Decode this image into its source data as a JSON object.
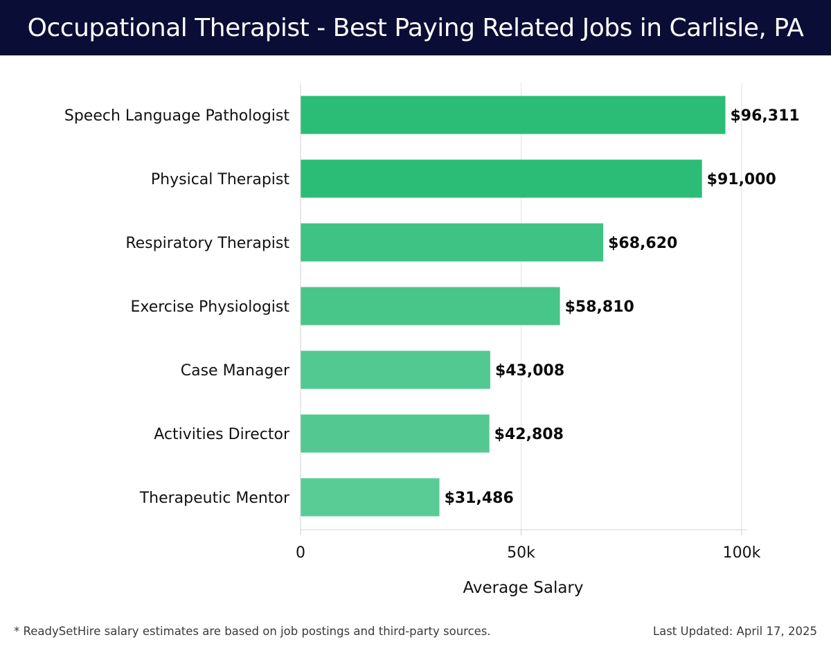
{
  "header": {
    "title": "Occupational Therapist - Best Paying Related Jobs in Carlisle, PA"
  },
  "footer": {
    "note": "* ReadySetHire salary estimates are based on job postings and third-party sources.",
    "updated": "Last Updated: April 17, 2025"
  },
  "chart_data": {
    "type": "bar",
    "orientation": "horizontal",
    "title": "Occupational Therapist - Best Paying Related Jobs in Carlisle, PA",
    "xlabel": "Average Salary",
    "ylabel": "",
    "xlim": [
      0,
      100000
    ],
    "x_ticks": [
      0,
      50000,
      100000
    ],
    "x_tick_labels": [
      "0",
      "50k",
      "100k"
    ],
    "grid": "vertical",
    "categories": [
      "Speech Language Pathologist",
      "Physical Therapist",
      "Respiratory Therapist",
      "Exercise Physiologist",
      "Case Manager",
      "Activities Director",
      "Therapeutic Mentor"
    ],
    "values": [
      96311,
      91000,
      68620,
      58810,
      43008,
      42808,
      31486
    ],
    "value_labels": [
      "$96,311",
      "$91,000",
      "$68,620",
      "$58,810",
      "$43,008",
      "$42,808",
      "$31,486"
    ],
    "bar_colors": [
      "#2bbd76",
      "#2bbd76",
      "#3ec384",
      "#48c68a",
      "#52c991",
      "#53c991",
      "#59cc96"
    ]
  }
}
